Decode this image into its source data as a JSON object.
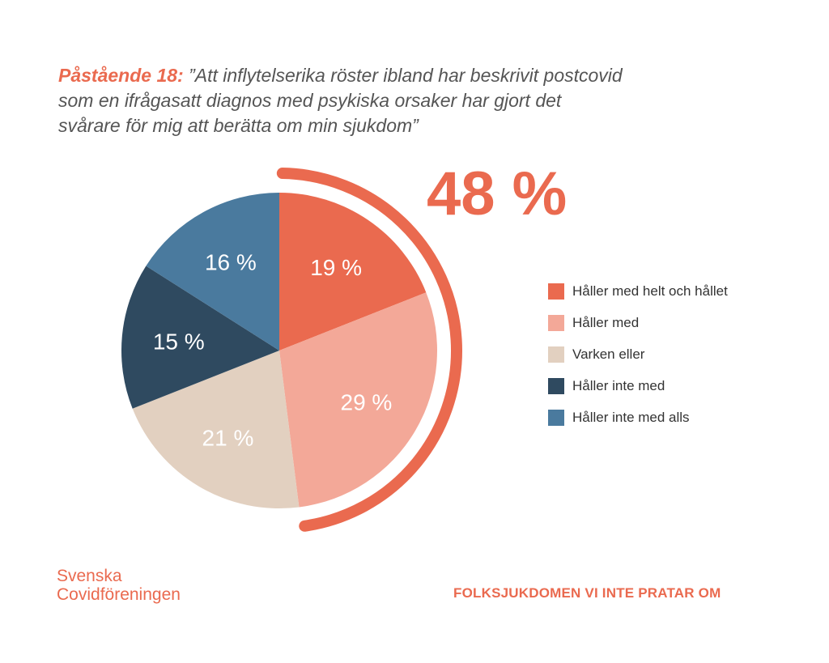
{
  "title": {
    "lead": "Påstående 18:",
    "text": "”Att inflytelserika röster ibland har beskrivit postcovid som en ifrågasatt diagnos med psykiska orsaker har gjort det svårare för mig att berätta om min sjukdom”"
  },
  "highlight": {
    "value": "48 %",
    "color": "#ea6a4f"
  },
  "chart_data": {
    "type": "pie",
    "labels": [
      "Håller med helt och hållet",
      "Håller med",
      "Varken eller",
      "Håller inte med",
      "Håller inte med alls"
    ],
    "values": [
      19,
      29,
      21,
      15,
      16
    ],
    "value_labels": [
      "19 %",
      "29 %",
      "21 %",
      "15 %",
      "16 %"
    ],
    "colors": [
      "#ea6a4f",
      "#f3a898",
      "#e2d0c0",
      "#2f4a60",
      "#4a7a9e"
    ],
    "legend_position": "right"
  },
  "legend": {
    "items": [
      {
        "label": "Håller med helt och hållet",
        "color": "#ea6a4f"
      },
      {
        "label": "Håller med",
        "color": "#f3a898"
      },
      {
        "label": "Varken eller",
        "color": "#e2d0c0"
      },
      {
        "label": "Håller inte med",
        "color": "#2f4a60"
      },
      {
        "label": "Håller inte med alls",
        "color": "#4a7a9e"
      }
    ]
  },
  "brand": {
    "line1": "Svenska",
    "line2": "Covidföreningen"
  },
  "tagline": "FOLKSJUKDOMEN VI INTE PRATAR OM"
}
